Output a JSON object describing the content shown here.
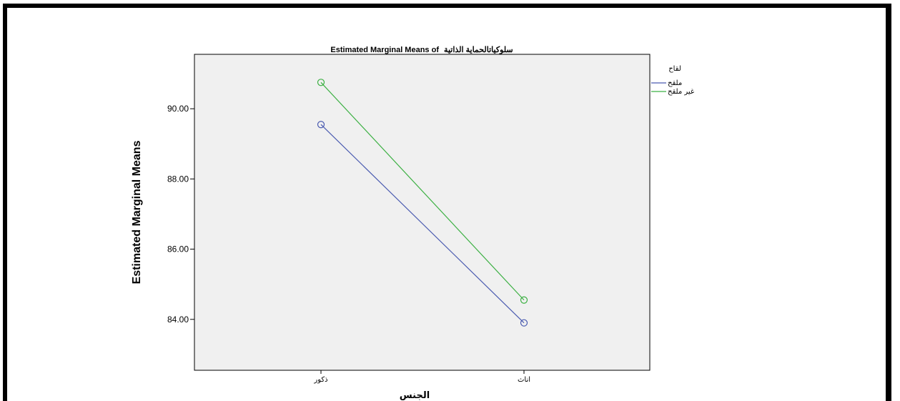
{
  "chart_data": {
    "type": "line",
    "title_prefix": "Estimated Marginal Means of",
    "title_var": "سلوكياتالحماية الذاتية",
    "ylabel": "Estimated Marginal Means",
    "xlabel": "الجنس",
    "categories": [
      "ذكور",
      "اناث"
    ],
    "yticks": [
      {
        "value": 84,
        "label": "84.00"
      },
      {
        "value": 86,
        "label": "86.00"
      },
      {
        "value": 88,
        "label": "88.00"
      },
      {
        "value": 90,
        "label": "90.00"
      }
    ],
    "ylim": [
      82.55,
      91.55
    ],
    "legend_title": "لقاح",
    "legend_position": "top-right-outside",
    "grid": false,
    "series": [
      {
        "name": "ملقح",
        "color": "#4a5bb0",
        "values": [
          89.55,
          83.9
        ]
      },
      {
        "name": "غير ملقح",
        "color": "#3cb043",
        "values": [
          90.75,
          84.55
        ]
      }
    ],
    "plot_background": "#f0f0f0"
  }
}
